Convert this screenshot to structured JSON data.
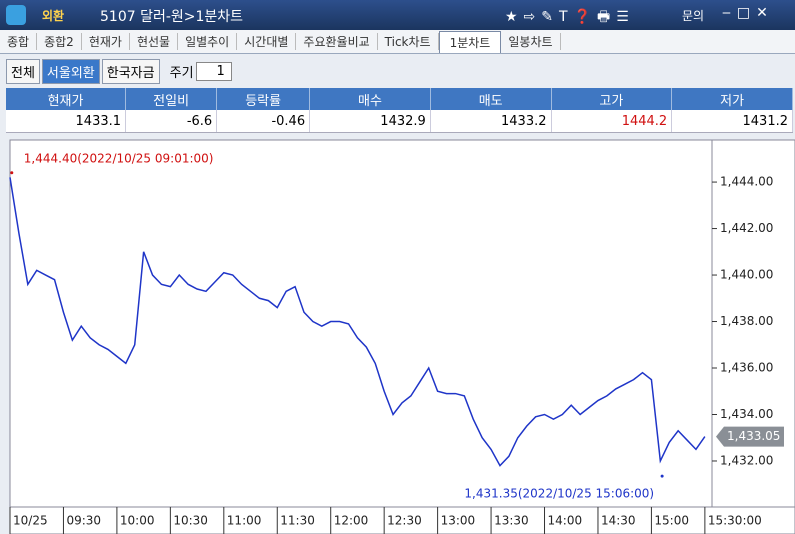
{
  "window": {
    "section": "외환",
    "title": "5107 달러-원>1분차트",
    "help": "문의"
  },
  "tabs": [
    "종합",
    "종합2",
    "현재가",
    "현선물",
    "일별추이",
    "시간대별",
    "주요환율비교",
    "Tick차트",
    "1분차트",
    "일봉차트"
  ],
  "active_tab": 8,
  "filters": [
    "전체",
    "서울외환",
    "한국자금"
  ],
  "active_filter": 1,
  "period_label": "주기",
  "period_value": 1,
  "quote": {
    "headers": [
      "현재가",
      "전일비",
      "등락률",
      "매수",
      "매도",
      "고가",
      "저가"
    ],
    "values": [
      1433.1,
      -6.6,
      -0.46,
      1432.9,
      1433.2,
      1444.2,
      1431.2
    ]
  },
  "chart_data": {
    "type": "line",
    "color": "#1f35c8",
    "x": [
      540,
      545,
      550,
      555,
      560,
      565,
      570,
      575,
      580,
      585,
      590,
      595,
      600,
      605,
      610,
      615,
      620,
      625,
      630,
      635,
      640,
      645,
      650,
      655,
      660,
      665,
      670,
      675,
      680,
      685,
      690,
      695,
      700,
      705,
      710,
      715,
      720,
      725,
      730,
      735,
      740,
      745,
      750,
      755,
      760,
      765,
      770,
      775,
      780,
      785,
      790,
      795,
      800,
      805,
      810,
      815,
      820,
      825,
      830,
      835,
      840,
      845,
      850,
      855,
      860,
      865,
      870,
      875,
      880,
      885,
      890,
      895,
      900,
      905,
      910,
      915,
      920,
      925,
      930
    ],
    "values": [
      1444.2,
      1441.8,
      1439.6,
      1440.2,
      1440.0,
      1439.8,
      1438.4,
      1437.2,
      1437.8,
      1437.3,
      1437.0,
      1436.8,
      1436.5,
      1436.2,
      1437.0,
      1441.0,
      1440.0,
      1439.6,
      1439.5,
      1440.0,
      1439.6,
      1439.4,
      1439.3,
      1439.7,
      1440.1,
      1440.0,
      1439.6,
      1439.3,
      1439.0,
      1438.9,
      1438.6,
      1439.3,
      1439.5,
      1438.4,
      1438.0,
      1437.8,
      1438.0,
      1438.0,
      1437.9,
      1437.3,
      1436.9,
      1436.2,
      1435.0,
      1434.0,
      1434.5,
      1434.8,
      1435.4,
      1436.0,
      1435.0,
      1434.9,
      1434.9,
      1434.8,
      1433.8,
      1433.0,
      1432.5,
      1431.8,
      1432.2,
      1433.0,
      1433.5,
      1433.9,
      1434.0,
      1433.8,
      1434.0,
      1434.4,
      1434.0,
      1434.3,
      1434.6,
      1434.8,
      1435.1,
      1435.3,
      1435.5,
      1435.8,
      1435.5,
      1432.0,
      1432.8,
      1433.3,
      1432.9,
      1432.5,
      1433.05
    ],
    "xlim": [
      540,
      934
    ],
    "xticks": [
      {
        "value": 540,
        "label": "10/25"
      },
      {
        "value": 570,
        "label": "09:30"
      },
      {
        "value": 600,
        "label": "10:00"
      },
      {
        "value": 630,
        "label": "10:30"
      },
      {
        "value": 660,
        "label": "11:00"
      },
      {
        "value": 690,
        "label": "11:30"
      },
      {
        "value": 720,
        "label": "12:00"
      },
      {
        "value": 750,
        "label": "12:30"
      },
      {
        "value": 780,
        "label": "13:00"
      },
      {
        "value": 810,
        "label": "13:30"
      },
      {
        "value": 840,
        "label": "14:00"
      },
      {
        "value": 870,
        "label": "14:30"
      },
      {
        "value": 900,
        "label": "15:00"
      },
      {
        "value": 930,
        "label": "15:30:00"
      }
    ],
    "ylim": [
      1430.02,
      1445.81
    ],
    "yticks": [
      {
        "value": 1432,
        "label": "1,432.00"
      },
      {
        "value": 1434,
        "label": "1,434.00"
      },
      {
        "value": 1436,
        "label": "1,436.00"
      },
      {
        "value": 1438,
        "label": "1,438.00"
      },
      {
        "value": 1440,
        "label": "1,440.00"
      },
      {
        "value": 1442,
        "label": "1,442.00"
      },
      {
        "value": 1444,
        "label": "1,444.00"
      }
    ],
    "annotations": [
      {
        "text": "1,444.40(2022/10/25 09:01:00)",
        "x": 541,
        "y": 1444.4
      },
      {
        "text": "1,431.35(2022/10/25 15:06:00)",
        "x": 906,
        "y": 1431.35
      }
    ],
    "price_marker": {
      "value": 1433.05,
      "label": "1,433.05"
    }
  }
}
